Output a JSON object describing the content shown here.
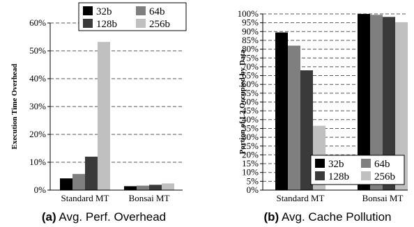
{
  "chart_data": [
    {
      "type": "bar",
      "caption_tag": "(a)",
      "caption_text": "Avg. Perf. Overhead",
      "ylabel": "Execution Time Overhead",
      "xlabel": "",
      "categories": [
        "Standard MT",
        "Bonsai MT"
      ],
      "ylim": [
        0,
        60
      ],
      "yticks": [
        "0%",
        "10%",
        "20%",
        "30%",
        "40%",
        "50%",
        "60%"
      ],
      "grid": "horizontal dashed",
      "legend_position": "top-center",
      "series": [
        {
          "name": "32b",
          "color": "#000000",
          "values": [
            4.2,
            1.4
          ]
        },
        {
          "name": "64b",
          "color": "#7f7f7f",
          "values": [
            5.8,
            1.6
          ]
        },
        {
          "name": "128b",
          "color": "#3a3a3a",
          "values": [
            12.0,
            1.9
          ]
        },
        {
          "name": "256b",
          "color": "#c0c0c0",
          "values": [
            53.2,
            2.4
          ]
        }
      ]
    },
    {
      "type": "bar",
      "caption_tag": "(b)",
      "caption_text": "Avg. Cache Pollution",
      "ylabel": "Portion of L2 Occupied by Data",
      "xlabel": "",
      "categories": [
        "Standard MT",
        "Bonsai MT"
      ],
      "ylim": [
        0,
        100
      ],
      "yticks": [
        "0%",
        "5%",
        "10%",
        "15%",
        "20%",
        "25%",
        "30%",
        "35%",
        "40%",
        "45%",
        "50%",
        "55%",
        "60%",
        "65%",
        "70%",
        "75%",
        "80%",
        "85%",
        "90%",
        "95%",
        "100%"
      ],
      "grid": "horizontal dashed",
      "legend_position": "bottom-right",
      "series": [
        {
          "name": "32b",
          "color": "#000000",
          "values": [
            89.5,
            100
          ]
        },
        {
          "name": "64b",
          "color": "#7f7f7f",
          "values": [
            82.0,
            99.5
          ]
        },
        {
          "name": "128b",
          "color": "#3a3a3a",
          "values": [
            68.0,
            98.3
          ]
        },
        {
          "name": "256b",
          "color": "#c0c0c0",
          "values": [
            36.5,
            95.3
          ]
        }
      ]
    }
  ]
}
